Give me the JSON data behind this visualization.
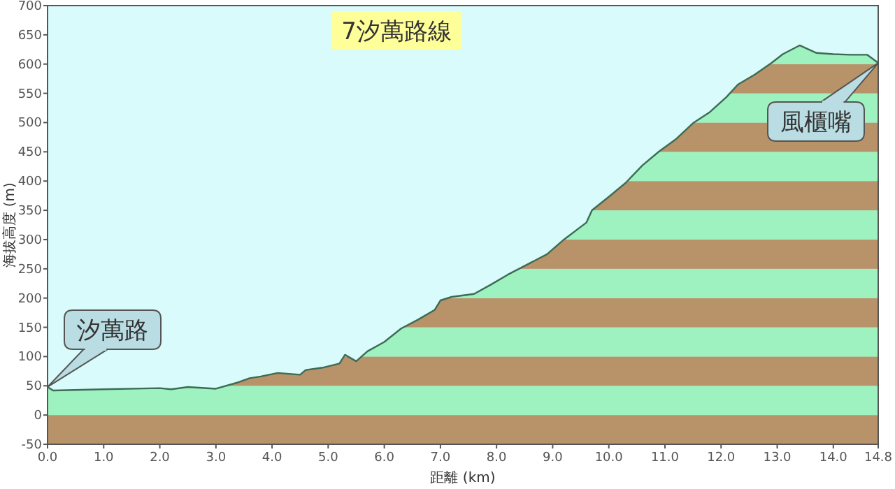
{
  "chart_data": {
    "type": "area",
    "title": "7汐萬路線",
    "xlabel": "距離 (km)",
    "ylabel": "海拔高度 (m)",
    "x": [
      0,
      0.1,
      1.0,
      2.0,
      2.2,
      2.5,
      3.0,
      3.4,
      3.6,
      3.8,
      4.1,
      4.5,
      4.6,
      4.9,
      5.2,
      5.3,
      5.5,
      5.7,
      6.0,
      6.3,
      6.6,
      6.9,
      7.0,
      7.2,
      7.6,
      7.9,
      8.2,
      8.5,
      8.9,
      9.2,
      9.6,
      9.7,
      10.0,
      10.3,
      10.6,
      10.9,
      11.2,
      11.5,
      11.8,
      12.1,
      12.3,
      12.6,
      12.9,
      13.1,
      13.4,
      13.7,
      14.0,
      14.3,
      14.6,
      14.8
    ],
    "series": [
      {
        "color": "#3d6b55",
        "values": [
          48,
          42,
          44,
          46,
          44,
          48,
          45,
          56,
          63,
          66,
          72,
          69,
          77,
          81,
          88,
          103,
          92,
          109,
          125,
          148,
          163,
          180,
          196,
          202,
          207,
          223,
          240,
          255,
          275,
          300,
          329,
          350,
          373,
          397,
          427,
          451,
          472,
          499,
          518,
          544,
          565,
          582,
          602,
          617,
          632,
          619,
          617,
          616,
          616,
          602
        ]
      }
    ],
    "bands": [
      {
        "axis": "y",
        "from": -50,
        "to": 0,
        "color": "#b89268"
      },
      {
        "axis": "y",
        "from": 0,
        "to": 50,
        "color": "#9ef2c0"
      },
      {
        "axis": "y",
        "from": 50,
        "to": 100,
        "color": "#b89268"
      },
      {
        "axis": "y",
        "from": 100,
        "to": 150,
        "color": "#9ef2c0"
      },
      {
        "axis": "y",
        "from": 150,
        "to": 200,
        "color": "#b89268"
      },
      {
        "axis": "y",
        "from": 200,
        "to": 250,
        "color": "#9ef2c0"
      },
      {
        "axis": "y",
        "from": 250,
        "to": 300,
        "color": "#b89268"
      },
      {
        "axis": "y",
        "from": 300,
        "to": 350,
        "color": "#9ef2c0"
      },
      {
        "axis": "y",
        "from": 350,
        "to": 400,
        "color": "#b89268"
      },
      {
        "axis": "y",
        "from": 400,
        "to": 450,
        "color": "#9ef2c0"
      },
      {
        "axis": "y",
        "from": 450,
        "to": 500,
        "color": "#b89268"
      },
      {
        "axis": "y",
        "from": 500,
        "to": 550,
        "color": "#9ef2c0"
      },
      {
        "axis": "y",
        "from": 550,
        "to": 600,
        "color": "#b89268"
      },
      {
        "axis": "y",
        "from": 600,
        "to": 650,
        "color": "#9ef2c0"
      }
    ],
    "annotations": [
      {
        "text": "汐萬路",
        "x": 0,
        "y": 48
      },
      {
        "text": "風櫃嘴",
        "x": 14.8,
        "y": 602
      }
    ],
    "xlim": [
      0,
      14.8
    ],
    "ylim": [
      -50,
      700
    ],
    "xticks": [
      {
        "value": 0,
        "label": "0.0"
      },
      {
        "value": 1,
        "label": "1.0"
      },
      {
        "value": 2,
        "label": "2.0"
      },
      {
        "value": 3,
        "label": "3.0"
      },
      {
        "value": 4,
        "label": "4.0"
      },
      {
        "value": 5,
        "label": "5.0"
      },
      {
        "value": 6,
        "label": "6.0"
      },
      {
        "value": 7,
        "label": "7.0"
      },
      {
        "value": 8,
        "label": "8.0"
      },
      {
        "value": 9,
        "label": "9.0"
      },
      {
        "value": 10,
        "label": "10.0"
      },
      {
        "value": 11,
        "label": "11.0"
      },
      {
        "value": 12,
        "label": "12.0"
      },
      {
        "value": 13,
        "label": "13.0"
      },
      {
        "value": 14,
        "label": "14.0"
      },
      {
        "value": 14.8,
        "label": "14.8"
      }
    ],
    "yticks": [
      -50,
      0,
      50,
      100,
      150,
      200,
      250,
      300,
      350,
      400,
      450,
      500,
      550,
      600,
      650,
      700
    ],
    "grid": false
  }
}
